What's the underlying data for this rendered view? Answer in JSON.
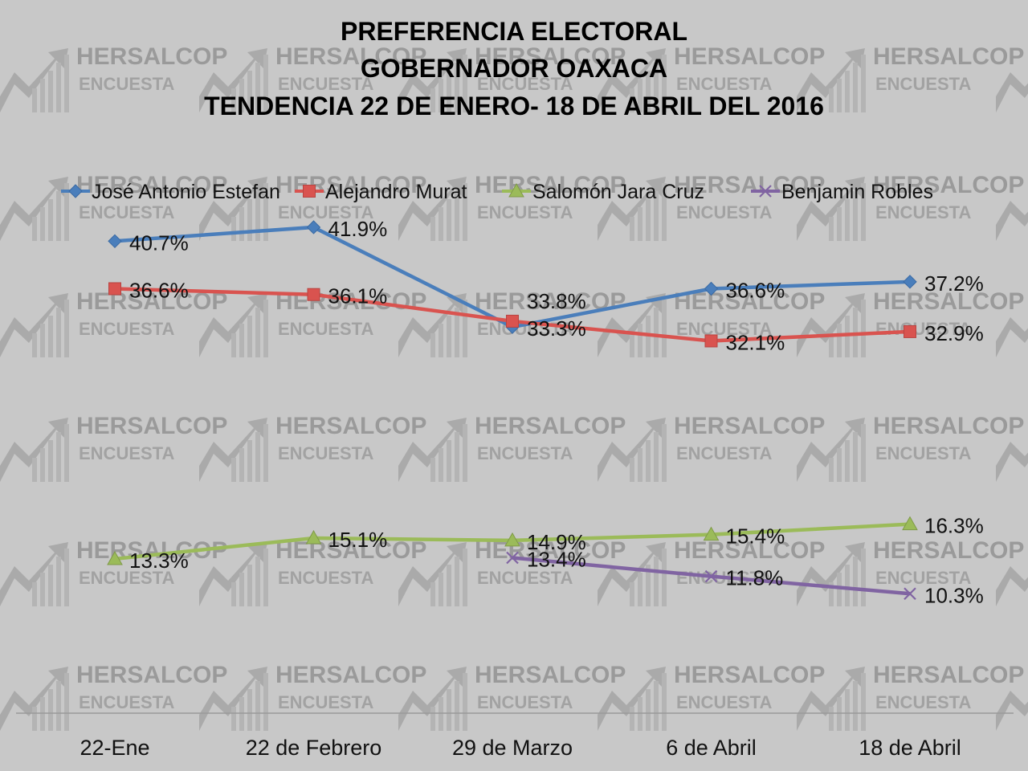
{
  "chart_data": {
    "type": "line",
    "title_lines": [
      "PREFERENCIA ELECTORAL",
      "GOBERNADOR OAXACA",
      "TENDENCIA 22 DE ENERO- 18 DE ABRIL DEL 2016"
    ],
    "categories": [
      "22-Ene",
      "22 de Febrero",
      "29 de Marzo",
      "6 de Abril",
      "18 de Abril"
    ],
    "ylim": [
      0,
      50
    ],
    "grid": false,
    "legend_position": "top",
    "series": [
      {
        "name": "José Antonio Estefan",
        "color": "#4a7ebb",
        "marker": "diamond",
        "values": [
          40.7,
          41.9,
          33.3,
          36.6,
          37.2
        ],
        "labels": [
          "40.7%",
          "41.9%",
          "33.3%",
          "36.6%",
          "37.2%"
        ]
      },
      {
        "name": "Alejandro Murat",
        "color": "#d9534f",
        "marker": "square",
        "values": [
          36.6,
          36.1,
          33.8,
          32.1,
          32.9
        ],
        "labels": [
          "36.6%",
          "36.1%",
          "33.8%",
          "32.1%",
          "32.9%"
        ]
      },
      {
        "name": "Salomón Jara Cruz",
        "color": "#9bbb59",
        "marker": "triangle",
        "values": [
          13.3,
          15.1,
          14.9,
          15.4,
          16.3
        ],
        "labels": [
          "13.3%",
          "15.1%",
          "14.9%",
          "15.4%",
          "16.3%"
        ]
      },
      {
        "name": "Benjamin Robles",
        "color": "#8064a2",
        "marker": "x",
        "values": [
          null,
          null,
          13.4,
          11.8,
          10.3
        ],
        "labels": [
          null,
          null,
          "13.4%",
          "11.8%",
          "10.3%"
        ]
      }
    ]
  },
  "watermark": {
    "line1": "HERSALCOP",
    "line2": "ENCUESTA"
  }
}
